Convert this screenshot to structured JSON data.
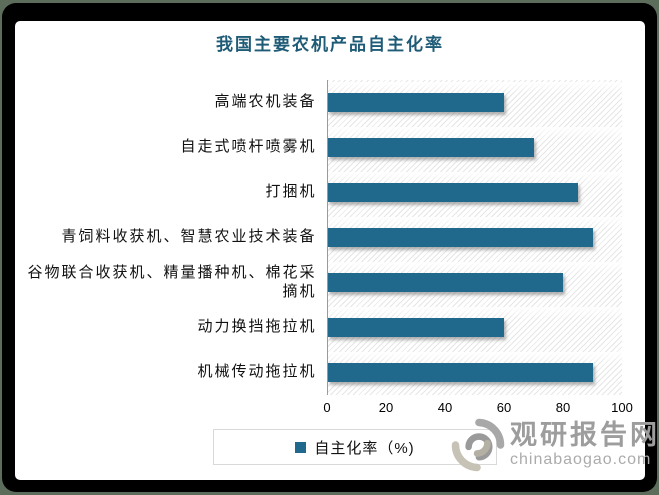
{
  "title": "我国主要农机产品自主化率",
  "legend": {
    "label": "自主化率（%)"
  },
  "watermark": {
    "name": "观研报告网",
    "domain": "chinabaogao.com"
  },
  "colors": {
    "bar": "#20698C",
    "title": "#1E5B77",
    "frame": "#000000",
    "outer_background": "#5C6D5C"
  },
  "chart_data": {
    "type": "bar",
    "orientation": "horizontal",
    "title": "我国主要农机产品自主化率",
    "categories": [
      "高端农机装备",
      "自走式喷杆喷雾机",
      "打捆机",
      "青饲料收获机、智慧农业技术装备",
      "谷物联合收获机、精量播种机、棉花采摘机",
      "动力换挡拖拉机",
      "机械传动拖拉机"
    ],
    "series": [
      {
        "name": "自主化率（%)",
        "values": [
          60,
          70,
          85,
          90,
          80,
          60,
          90
        ]
      }
    ],
    "xlabel": "",
    "ylabel": "",
    "xlim": [
      0,
      100
    ],
    "x_ticks": [
      "0",
      "20",
      "40",
      "60",
      "80",
      "100"
    ],
    "grid": false,
    "legend_position": "bottom",
    "plot_background": "diagonal-hatch"
  }
}
